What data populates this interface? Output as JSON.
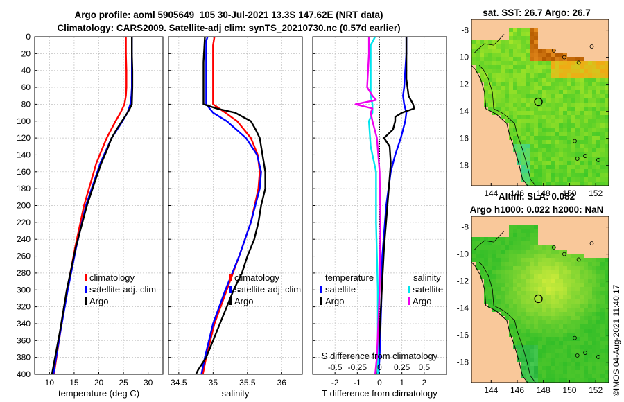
{
  "header": {
    "title_line1": "Argo profile: aoml 5905649_105 30-Jul-2021 13.3S 147.62E (NRT data)",
    "title_line2": "Climatology: CARS2009. Satellite-adj clim: synTS_20210730.nc (0.57d earlier)"
  },
  "watermark": "©IMOS 04-Aug-2021 11:40:17",
  "colors": {
    "climatology": "#ff0000",
    "satellite": "#0000ff",
    "argo": "#000000",
    "s_satellite": "#00e5ee",
    "s_argo": "#ee00ee",
    "land": "#f9c89a",
    "grid": "#c0c0c0"
  },
  "chart_data": [
    {
      "id": "temperature",
      "type": "line",
      "xlabel": "temperature (deg C)",
      "ylabel": "depth",
      "xlim": [
        7,
        33
      ],
      "ylim": [
        400,
        0
      ],
      "xticks": [
        10,
        15,
        20,
        25,
        30
      ],
      "xtick_labels": [
        "10",
        "15",
        "20",
        "25",
        "30"
      ],
      "yticks": [
        0,
        20,
        40,
        60,
        80,
        100,
        120,
        140,
        160,
        180,
        200,
        220,
        240,
        260,
        280,
        300,
        320,
        340,
        360,
        380,
        400
      ],
      "ytick_labels": [
        "0",
        "20",
        "40",
        "60",
        "80",
        "100",
        "120",
        "140",
        "160",
        "180",
        "200",
        "220",
        "240",
        "260",
        "280",
        "300",
        "320",
        "340",
        "360",
        "380",
        "400"
      ],
      "legend": [
        "climatology",
        "satellite-adj. clim",
        "Argo"
      ],
      "series": [
        {
          "name": "climatology",
          "color": "#ff0000",
          "depth": [
            0,
            20,
            40,
            60,
            70,
            80,
            90,
            100,
            120,
            150,
            200,
            250,
            300,
            350,
            400
          ],
          "values": [
            25.5,
            25.5,
            25.6,
            25.6,
            25.5,
            25.2,
            24.4,
            23.4,
            21.6,
            19.5,
            17.0,
            15.2,
            13.6,
            12.2,
            10.9
          ]
        },
        {
          "name": "satellite-adj. clim",
          "color": "#0000ff",
          "depth": [
            0,
            20,
            40,
            60,
            70,
            80,
            90,
            100,
            120,
            150,
            200,
            250,
            300,
            350,
            400
          ],
          "values": [
            26.7,
            26.7,
            26.7,
            26.7,
            26.6,
            26.4,
            25.8,
            24.8,
            22.6,
            20.3,
            17.4,
            15.4,
            13.7,
            12.2,
            10.8
          ]
        },
        {
          "name": "Argo",
          "color": "#000000",
          "depth": [
            0,
            20,
            40,
            60,
            80,
            85,
            90,
            100,
            110,
            120,
            135,
            150,
            170,
            200,
            250,
            300,
            350,
            400
          ],
          "values": [
            26.7,
            26.7,
            26.8,
            26.8,
            26.7,
            26.3,
            25.8,
            24.7,
            23.6,
            22.6,
            21.6,
            20.5,
            19.3,
            17.6,
            15.3,
            13.5,
            12.1,
            10.5
          ]
        }
      ]
    },
    {
      "id": "salinity",
      "type": "line",
      "xlabel": "salinity",
      "xlim": [
        34.35,
        36.3
      ],
      "ylim": [
        400,
        0
      ],
      "xticks": [
        34.5,
        35,
        35.5,
        36
      ],
      "xtick_labels": [
        "34.5",
        "35",
        "35.5",
        "36"
      ],
      "legend": [
        "climatology",
        "satellite-adj. clim",
        "Argo"
      ],
      "series": [
        {
          "name": "climatology",
          "color": "#ff0000",
          "depth": [
            0,
            10,
            80,
            90,
            100,
            120,
            140,
            160,
            180,
            220,
            260,
            300,
            340,
            380,
            400
          ],
          "values": [
            35.02,
            35.0,
            35.0,
            35.18,
            35.35,
            35.55,
            35.65,
            35.68,
            35.66,
            35.55,
            35.38,
            35.2,
            35.02,
            34.9,
            34.85
          ]
        },
        {
          "name": "satellite-adj. clim",
          "color": "#0000ff",
          "depth": [
            0,
            5,
            80,
            90,
            100,
            120,
            140,
            160,
            180,
            220,
            260,
            300,
            340,
            380,
            400
          ],
          "values": [
            34.92,
            34.9,
            34.9,
            35.0,
            35.2,
            35.48,
            35.64,
            35.7,
            35.68,
            35.55,
            35.38,
            35.18,
            35.0,
            34.88,
            34.83
          ]
        },
        {
          "name": "Argo",
          "color": "#000000",
          "depth": [
            0,
            30,
            80,
            85,
            90,
            100,
            110,
            120,
            140,
            160,
            180,
            200,
            220,
            240,
            260,
            280,
            300,
            320,
            340,
            360,
            380,
            395,
            400
          ],
          "values": [
            34.88,
            34.86,
            34.86,
            35.05,
            35.32,
            35.55,
            35.62,
            35.68,
            35.72,
            35.76,
            35.76,
            35.7,
            35.66,
            35.6,
            35.5,
            35.42,
            35.3,
            35.2,
            35.1,
            35.0,
            34.9,
            34.78,
            34.75
          ]
        }
      ]
    },
    {
      "id": "difference",
      "type": "line",
      "xlabel": "T difference from climatology",
      "top_xlabel": "S difference from climatology",
      "xlim": [
        -3,
        3
      ],
      "ylim": [
        400,
        0
      ],
      "xticks": [
        -2,
        -1,
        0,
        1,
        2
      ],
      "xtick_labels": [
        "-2",
        "-1",
        "0",
        "1",
        "2"
      ],
      "s_xlim": [
        -0.75,
        0.75
      ],
      "s_xticks": [
        -0.5,
        -0.25,
        0,
        0.25,
        0.5
      ],
      "s_xtick_labels": [
        "-0.5",
        "-0.25",
        "0",
        "0.25",
        "0.5"
      ],
      "legend_temperature_title": "temperature",
      "legend_salinity_title": "salinity",
      "legend_temperature": [
        "satellite",
        "Argo"
      ],
      "legend_salinity": [
        "satellite",
        "Argo"
      ],
      "series": [
        {
          "name": "T satellite",
          "color": "#0000ff",
          "axis": "T",
          "depth": [
            0,
            20,
            40,
            60,
            70,
            80,
            90,
            100,
            120,
            140,
            160,
            200,
            260,
            320,
            380,
            400
          ],
          "values": [
            1.2,
            1.2,
            1.15,
            1.1,
            1.05,
            1.1,
            1.2,
            1.15,
            0.95,
            0.7,
            0.5,
            0.3,
            0.12,
            0.07,
            0.0,
            -0.05
          ]
        },
        {
          "name": "T Argo",
          "color": "#000000",
          "axis": "T",
          "depth": [
            0,
            50,
            70,
            75,
            80,
            85,
            90,
            95,
            100,
            110,
            120,
            130,
            150,
            200,
            250,
            300,
            350,
            400
          ],
          "values": [
            1.2,
            1.2,
            1.3,
            1.4,
            1.5,
            1.55,
            1.0,
            0.7,
            0.7,
            0.6,
            0.2,
            0.45,
            0.5,
            0.35,
            0.2,
            0.1,
            0.0,
            -0.1
          ]
        },
        {
          "name": "S satellite",
          "color": "#00e5ee",
          "axis": "S",
          "depth": [
            0,
            10,
            40,
            70,
            80,
            90,
            100,
            130,
            160,
            220,
            300,
            400
          ],
          "values": [
            -0.05,
            -0.1,
            -0.1,
            -0.1,
            -0.08,
            -0.08,
            -0.12,
            -0.1,
            -0.04,
            -0.04,
            -0.02,
            -0.02
          ]
        },
        {
          "name": "S Argo",
          "color": "#ee00ee",
          "axis": "S",
          "depth": [
            0,
            20,
            40,
            60,
            70,
            75,
            80,
            85,
            90,
            100,
            120,
            160,
            220,
            300,
            380,
            400
          ],
          "values": [
            -0.12,
            -0.12,
            -0.13,
            -0.14,
            -0.08,
            -0.04,
            -0.27,
            -0.08,
            -0.1,
            -0.08,
            -0.03,
            0.0,
            0.01,
            0.0,
            -0.03,
            -0.05
          ]
        }
      ]
    }
  ],
  "maps": [
    {
      "id": "sst-map",
      "title_lines": [
        "sat. SST: 26.7 Argo: 26.7"
      ],
      "xticks": [
        144,
        146,
        148,
        150,
        152
      ],
      "yticks": [
        -8,
        -10,
        -12,
        -14,
        -16,
        -18
      ],
      "xlim": [
        142.5,
        153
      ],
      "ylim": [
        -19.5,
        -7.2
      ],
      "marker": {
        "lon": 147.62,
        "lat": -13.3
      },
      "field": "sst"
    },
    {
      "id": "sla-map",
      "title_lines": [
        "Altim. SLA: 0.082",
        "Argo h1000: 0.022 h2000: NaN"
      ],
      "xticks": [
        144,
        146,
        148,
        150,
        152
      ],
      "yticks": [
        -8,
        -10,
        -12,
        -14,
        -16,
        -18
      ],
      "xlim": [
        142.5,
        153
      ],
      "ylim": [
        -19.5,
        -7.2
      ],
      "marker": {
        "lon": 147.62,
        "lat": -13.3
      },
      "field": "sla"
    }
  ]
}
